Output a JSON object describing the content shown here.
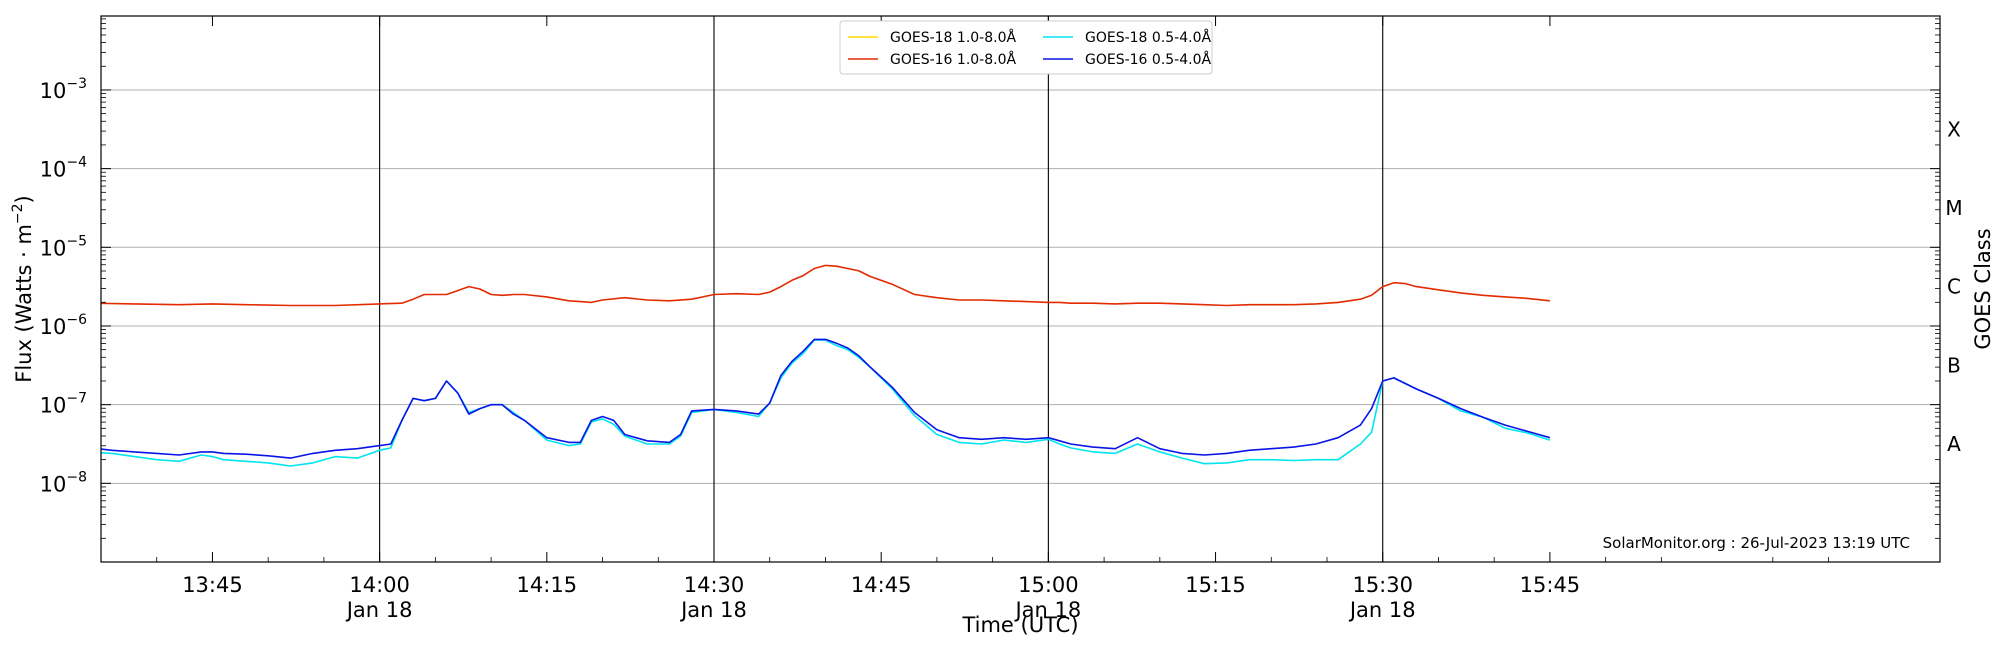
{
  "chart_data": {
    "type": "line",
    "title": "",
    "xlabel": "Time (UTC)",
    "ylabel": "Flux (Watts · m",
    "ylabel_sup": "−2",
    "ylabel_close": ")",
    "right_label": "GOES Class",
    "y_scale": "log",
    "ylim_exp": [
      -9,
      -2.06
    ],
    "xlim_min": [
      -25,
      140
    ],
    "x_unit": "minutes after 14:00 UTC, 18 Jan",
    "grid": "horizontal",
    "legend_position": "top-center",
    "x_ticks": [
      {
        "min": -15,
        "label": "13:45",
        "sub": ""
      },
      {
        "min": 0,
        "label": "14:00",
        "sub": "Jan 18"
      },
      {
        "min": 15,
        "label": "14:15",
        "sub": ""
      },
      {
        "min": 30,
        "label": "14:30",
        "sub": "Jan 18"
      },
      {
        "min": 45,
        "label": "14:45",
        "sub": ""
      },
      {
        "min": 60,
        "label": "15:00",
        "sub": "Jan 18"
      },
      {
        "min": 75,
        "label": "15:15",
        "sub": ""
      },
      {
        "min": 90,
        "label": "15:30",
        "sub": "Jan 18"
      },
      {
        "min": 105,
        "label": "15:45",
        "sub": ""
      }
    ],
    "day_lines_min": [
      0,
      30,
      60,
      90
    ],
    "y_ticks": [
      {
        "exp": -8,
        "label": "10",
        "sup": "−8"
      },
      {
        "exp": -7,
        "label": "10",
        "sup": "−7"
      },
      {
        "exp": -6,
        "label": "10",
        "sup": "−6"
      },
      {
        "exp": -5,
        "label": "10",
        "sup": "−5"
      },
      {
        "exp": -4,
        "label": "10",
        "sup": "−4"
      },
      {
        "exp": -3,
        "label": "10",
        "sup": "−3"
      }
    ],
    "goes_classes": [
      {
        "label": "A",
        "exp": -7.5
      },
      {
        "label": "B",
        "exp": -6.5
      },
      {
        "label": "C",
        "exp": -5.5
      },
      {
        "label": "M",
        "exp": -4.5
      },
      {
        "label": "X",
        "exp": -3.5
      }
    ],
    "annotation": "SolarMonitor.org : 26-Jul-2023 13:19 UTC",
    "series": [
      {
        "name": "GOES-18 1.0-8.0Å",
        "color": "#ffd700",
        "x": [],
        "y": []
      },
      {
        "name": "GOES-16 1.0-8.0Å",
        "color": "#e32b00",
        "x": [
          -26,
          -22,
          -18,
          -15,
          -12,
          -8,
          -4,
          0,
          2,
          3,
          4,
          6,
          7,
          8,
          9,
          10,
          11,
          12,
          13,
          15,
          17,
          18,
          19,
          20,
          22,
          24,
          26,
          28,
          29,
          30,
          32,
          34,
          35,
          36,
          37,
          38,
          39,
          40,
          41,
          42,
          43,
          44,
          46,
          48,
          50,
          52,
          54,
          56,
          58,
          60,
          61,
          62,
          64,
          66,
          68,
          70,
          72,
          74,
          76,
          78,
          80,
          82,
          84,
          86,
          88,
          89,
          90,
          91,
          92,
          93,
          95,
          97,
          99,
          101,
          103,
          105
        ],
        "y": [
          -5.71,
          -5.72,
          -5.73,
          -5.72,
          -5.73,
          -5.74,
          -5.74,
          -5.72,
          -5.71,
          -5.66,
          -5.6,
          -5.6,
          -5.55,
          -5.5,
          -5.53,
          -5.6,
          -5.61,
          -5.6,
          -5.6,
          -5.63,
          -5.68,
          -5.69,
          -5.7,
          -5.67,
          -5.64,
          -5.67,
          -5.68,
          -5.66,
          -5.63,
          -5.6,
          -5.59,
          -5.6,
          -5.57,
          -5.5,
          -5.42,
          -5.36,
          -5.27,
          -5.23,
          -5.24,
          -5.27,
          -5.3,
          -5.37,
          -5.47,
          -5.6,
          -5.64,
          -5.67,
          -5.67,
          -5.68,
          -5.69,
          -5.7,
          -5.7,
          -5.71,
          -5.71,
          -5.72,
          -5.71,
          -5.71,
          -5.72,
          -5.73,
          -5.74,
          -5.73,
          -5.73,
          -5.73,
          -5.72,
          -5.7,
          -5.66,
          -5.61,
          -5.5,
          -5.45,
          -5.46,
          -5.5,
          -5.54,
          -5.58,
          -5.61,
          -5.63,
          -5.65,
          -5.68
        ]
      },
      {
        "name": "GOES-18 0.5-4.0Å",
        "color": "#00e5ee",
        "x": [
          -26,
          -24,
          -22,
          -20,
          -18,
          -16,
          -15,
          -14,
          -12,
          -10,
          -8,
          -6,
          -4,
          -2,
          0,
          1,
          2,
          3,
          4,
          5,
          6,
          7,
          8,
          9,
          10,
          11,
          12,
          13,
          15,
          17,
          18,
          19,
          20,
          21,
          22,
          24,
          26,
          27,
          28,
          30,
          32,
          34,
          35,
          36,
          37,
          38,
          39,
          40,
          41,
          42,
          43,
          44,
          46,
          48,
          50,
          52,
          54,
          56,
          58,
          60,
          61,
          62,
          64,
          66,
          68,
          70,
          72,
          74,
          76,
          78,
          80,
          82,
          84,
          86,
          88,
          89,
          90,
          91,
          92,
          93,
          95,
          97,
          99,
          101,
          103,
          105
        ],
        "y": [
          -7.6,
          -7.62,
          -7.66,
          -7.7,
          -7.72,
          -7.64,
          -7.66,
          -7.7,
          -7.72,
          -7.74,
          -7.78,
          -7.74,
          -7.66,
          -7.68,
          -7.58,
          -7.55,
          -7.2,
          -6.92,
          -6.95,
          -6.92,
          -6.7,
          -6.85,
          -7.1,
          -7.05,
          -7.0,
          -7.0,
          -7.1,
          -7.2,
          -7.45,
          -7.52,
          -7.5,
          -7.22,
          -7.18,
          -7.25,
          -7.4,
          -7.5,
          -7.5,
          -7.4,
          -7.1,
          -7.06,
          -7.1,
          -7.15,
          -6.98,
          -6.66,
          -6.47,
          -6.35,
          -6.18,
          -6.18,
          -6.25,
          -6.3,
          -6.4,
          -6.52,
          -6.8,
          -7.14,
          -7.38,
          -7.48,
          -7.5,
          -7.45,
          -7.48,
          -7.44,
          -7.5,
          -7.55,
          -7.6,
          -7.62,
          -7.5,
          -7.6,
          -7.68,
          -7.75,
          -7.74,
          -7.7,
          -7.7,
          -7.71,
          -7.7,
          -7.7,
          -7.5,
          -7.35,
          -6.7,
          -6.66,
          -6.73,
          -6.8,
          -6.92,
          -7.08,
          -7.16,
          -7.3,
          -7.36,
          -7.45
        ]
      },
      {
        "name": "GOES-16 0.5-4.0Å",
        "color": "#0a14e8",
        "x": [
          -26,
          -24,
          -22,
          -20,
          -18,
          -16,
          -15,
          -14,
          -12,
          -10,
          -8,
          -6,
          -4,
          -2,
          0,
          1,
          2,
          3,
          4,
          5,
          6,
          7,
          8,
          9,
          10,
          11,
          12,
          13,
          15,
          17,
          18,
          19,
          20,
          21,
          22,
          24,
          26,
          27,
          28,
          30,
          32,
          34,
          35,
          36,
          37,
          38,
          39,
          40,
          41,
          42,
          43,
          44,
          46,
          48,
          50,
          52,
          54,
          56,
          58,
          60,
          61,
          62,
          64,
          66,
          68,
          70,
          72,
          74,
          76,
          78,
          80,
          82,
          84,
          86,
          88,
          89,
          90,
          91,
          92,
          93,
          95,
          97,
          99,
          101,
          103,
          105
        ],
        "y": [
          -7.55,
          -7.58,
          -7.6,
          -7.62,
          -7.64,
          -7.6,
          -7.6,
          -7.62,
          -7.63,
          -7.65,
          -7.68,
          -7.62,
          -7.58,
          -7.56,
          -7.52,
          -7.5,
          -7.2,
          -6.92,
          -6.95,
          -6.92,
          -6.7,
          -6.85,
          -7.12,
          -7.05,
          -7.0,
          -7.0,
          -7.12,
          -7.2,
          -7.42,
          -7.48,
          -7.48,
          -7.2,
          -7.15,
          -7.2,
          -7.38,
          -7.46,
          -7.48,
          -7.38,
          -7.08,
          -7.06,
          -7.08,
          -7.12,
          -6.98,
          -6.63,
          -6.45,
          -6.32,
          -6.17,
          -6.17,
          -6.22,
          -6.28,
          -6.38,
          -6.52,
          -6.78,
          -7.1,
          -7.32,
          -7.42,
          -7.44,
          -7.42,
          -7.44,
          -7.42,
          -7.46,
          -7.5,
          -7.54,
          -7.56,
          -7.42,
          -7.56,
          -7.62,
          -7.64,
          -7.62,
          -7.58,
          -7.56,
          -7.54,
          -7.5,
          -7.42,
          -7.26,
          -7.05,
          -6.7,
          -6.66,
          -6.73,
          -6.8,
          -6.92,
          -7.05,
          -7.16,
          -7.26,
          -7.34,
          -7.42
        ]
      }
    ]
  }
}
